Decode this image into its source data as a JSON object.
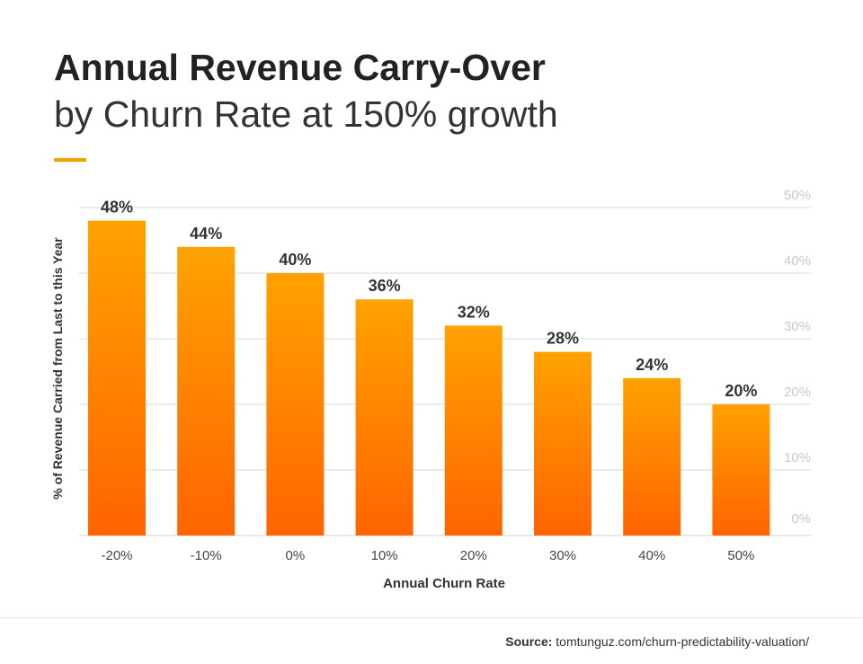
{
  "header": {
    "title": "Annual Revenue Carry-Over",
    "subtitle": "by Churn Rate at 150% growth"
  },
  "footer": {
    "source_label": "Source:",
    "source_text": "tomtunguz.com/churn-predictability-valuation/"
  },
  "colors": {
    "bar_top": "#ffa200",
    "bar_bottom": "#ff6400",
    "accent": "#f5a000",
    "gridline": "#d9d9d9",
    "right_tick": "#c8c8c8"
  },
  "chart_data": {
    "type": "bar",
    "title": "Annual Revenue Carry-Over",
    "subtitle": "by Churn Rate at 150% growth",
    "xlabel": "Annual Churn Rate",
    "ylabel": "% of Revenue Carried from Last to this Year",
    "categories": [
      "-20%",
      "-10%",
      "0%",
      "10%",
      "20%",
      "30%",
      "40%",
      "50%"
    ],
    "values": [
      48,
      44,
      40,
      36,
      32,
      28,
      24,
      20
    ],
    "data_labels": [
      "48%",
      "44%",
      "40%",
      "36%",
      "32%",
      "28%",
      "24%",
      "20%"
    ],
    "ylim": [
      0,
      50
    ],
    "y_ticks": [
      0,
      10,
      20,
      30,
      40,
      50
    ],
    "y_tick_labels": [
      "0%",
      "10%",
      "20%",
      "30%",
      "40%",
      "50%"
    ],
    "y_axis_side": "right",
    "grid": true,
    "legend": "none"
  }
}
